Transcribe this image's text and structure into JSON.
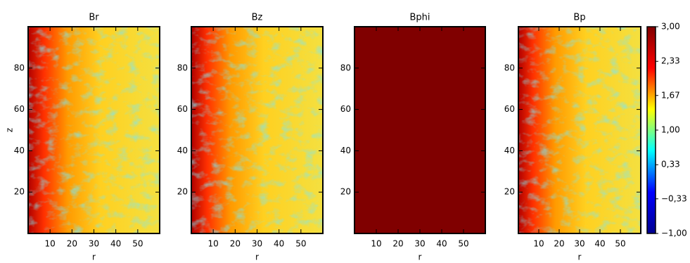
{
  "chart_data": [
    {
      "type": "heatmap",
      "title": "Br",
      "xlabel": "r",
      "ylabel": "z",
      "xlim": [
        0,
        60
      ],
      "ylim": [
        0,
        100
      ],
      "xticks": [
        10,
        20,
        30,
        40,
        50
      ],
      "yticks": [
        20,
        40,
        60,
        80
      ]
    },
    {
      "type": "heatmap",
      "title": "Bz",
      "xlabel": "r",
      "xlim": [
        0,
        60
      ],
      "ylim": [
        0,
        100
      ],
      "xticks": [
        10,
        20,
        30,
        40,
        50
      ],
      "yticks": [
        20,
        40,
        60,
        80
      ]
    },
    {
      "type": "heatmap",
      "title": "Bphi",
      "xlabel": "r",
      "xlim": [
        0,
        60
      ],
      "ylim": [
        0,
        100
      ],
      "xticks": [
        10,
        20,
        30,
        40,
        50
      ],
      "yticks": [
        20,
        40,
        60,
        80
      ]
    },
    {
      "type": "heatmap",
      "title": "Bp",
      "xlabel": "r",
      "xlim": [
        0,
        60
      ],
      "ylim": [
        0,
        100
      ],
      "xticks": [
        10,
        20,
        30,
        40,
        50
      ],
      "yticks": [
        20,
        40,
        60,
        80
      ],
      "colorbar": {
        "lim": [
          -1,
          3
        ],
        "ticks": [
          {
            "value": 3,
            "label": "3,00"
          },
          {
            "value": 2.33,
            "label": "2,33"
          },
          {
            "value": 1.67,
            "label": "1,67"
          },
          {
            "value": 1,
            "label": "1,00"
          },
          {
            "value": 0.33,
            "label": "0,33"
          },
          {
            "value": -0.33,
            "label": "−0,33"
          },
          {
            "value": -1,
            "label": "−1,00"
          }
        ],
        "colormap": [
          "#00008f",
          "#0000ff",
          "#00ffff",
          "#ffff00",
          "#ff0000",
          "#800000"
        ]
      }
    }
  ]
}
